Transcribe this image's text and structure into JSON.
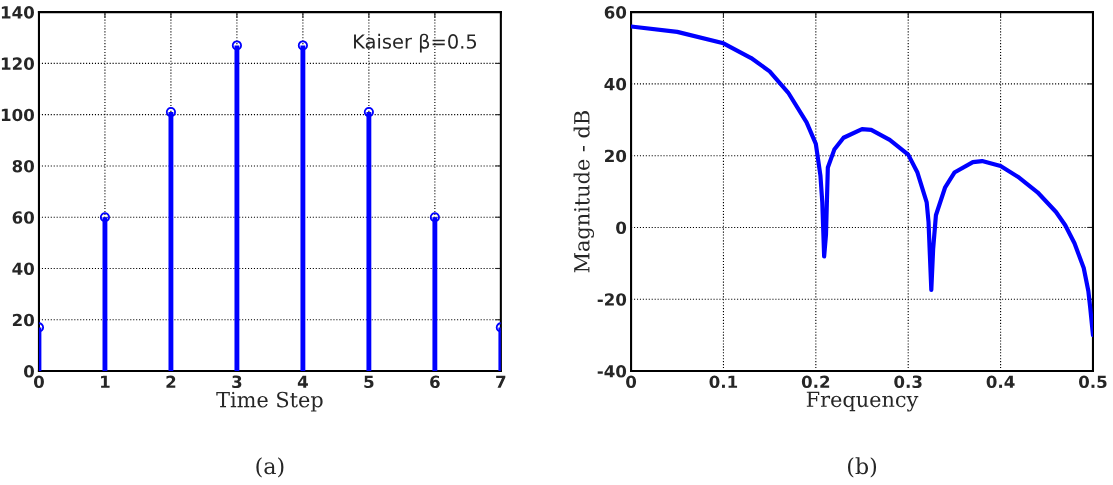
{
  "chart_data": [
    {
      "type": "lollipop",
      "xlabel": "Time Step",
      "annotations": [
        "Kaiser β=0.5",
        "(a)"
      ],
      "x": [
        0,
        1,
        2,
        3,
        4,
        5,
        6,
        7
      ],
      "series": [
        {
          "color": "#0000ff",
          "values": [
            17,
            60,
            101,
            127,
            127,
            101,
            60,
            17
          ]
        }
      ],
      "xlim": [
        0,
        7
      ],
      "xticks": [
        0,
        1,
        2,
        3,
        4,
        5,
        6,
        7
      ],
      "ylim": [
        0,
        140
      ],
      "yticks": [
        0,
        20,
        40,
        60,
        80,
        100,
        120,
        140
      ],
      "grid": true,
      "marker": "circle",
      "legend": false
    },
    {
      "type": "line",
      "xlabel": "Frequency",
      "ylabel": "Magnitude - dB",
      "annotations": [
        "(b)"
      ],
      "series": [
        {
          "color": "#0000ff",
          "x": [
            0,
            0.05,
            0.1,
            0.13,
            0.15,
            0.17,
            0.19,
            0.2,
            0.205,
            0.207,
            0.209,
            0.211,
            0.213,
            0.22,
            0.23,
            0.25,
            0.26,
            0.28,
            0.3,
            0.31,
            0.32,
            0.322,
            0.325,
            0.327,
            0.33,
            0.34,
            0.35,
            0.37,
            0.38,
            0.4,
            0.42,
            0.44,
            0.46,
            0.47,
            0.48,
            0.49,
            0.495,
            0.497,
            0.5
          ],
          "values": [
            56,
            54.5,
            51.3,
            47.2,
            43.5,
            37.6,
            29.3,
            23.3,
            14.4,
            7,
            -8.1,
            -2,
            16.7,
            21.7,
            25,
            27.4,
            27.2,
            24.4,
            20.3,
            15.3,
            7,
            1.5,
            -17.4,
            -6,
            3.4,
            11.2,
            15.3,
            18.2,
            18.5,
            17.1,
            13.9,
            9.8,
            4.3,
            0.6,
            -4.4,
            -11.3,
            -17.7,
            -22.3,
            -30
          ]
        }
      ],
      "xlim": [
        0,
        0.5
      ],
      "xticks": [
        0,
        0.1,
        0.2,
        0.3,
        0.4,
        0.5
      ],
      "ylim": [
        -40,
        60
      ],
      "yticks": [
        -40,
        -20,
        0,
        20,
        40,
        60
      ],
      "grid": true,
      "marker": "none",
      "line_style": "solid",
      "legend": false
    }
  ]
}
